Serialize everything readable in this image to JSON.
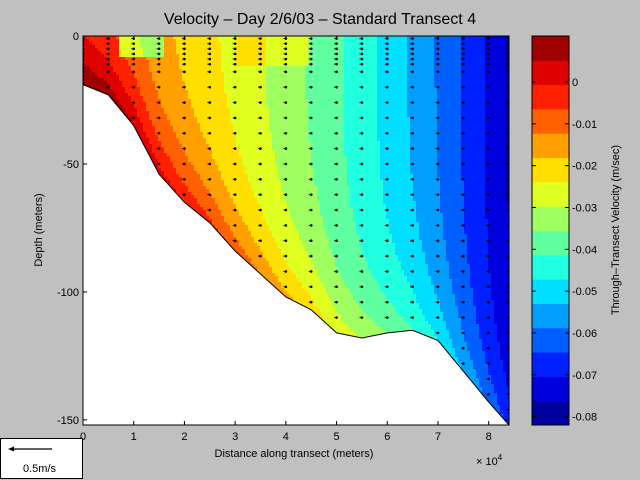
{
  "title": "Velocity – Day 2/6/03 – Standard Transect 4",
  "xlabel": "Distance along transect (meters)",
  "ylabel": "Depth (meters)",
  "x_exponent": "× 10",
  "x_exponent_power": "4",
  "colorbar_label": "Through–Transect Velocity (m/sec)",
  "scale_label": "0.5m/s",
  "chart_data": {
    "type": "heatmap",
    "title": "Velocity – Day 2/6/03 – Standard Transect 4",
    "xlabel": "Distance along transect (meters)",
    "ylabel": "Depth (meters)",
    "xlim": [
      0,
      8.4
    ],
    "ylim": [
      -152,
      0
    ],
    "x_scale": 10000,
    "x_ticks": [
      "0",
      "1",
      "2",
      "3",
      "4",
      "5",
      "6",
      "7",
      "8"
    ],
    "y_ticks": [
      "0",
      "-50",
      "-100",
      "-150"
    ],
    "colorbar": {
      "label": "Through–Transect Velocity (m/sec)",
      "range": [
        -0.082,
        0.011
      ],
      "ticks": [
        "0",
        "-0.01",
        "-0.02",
        "-0.03",
        "-0.04",
        "-0.05",
        "-0.06",
        "-0.07",
        "-0.08"
      ]
    },
    "bottom_profile": [
      [
        0,
        -19
      ],
      [
        0.5,
        -23
      ],
      [
        1,
        -35
      ],
      [
        1.5,
        -54
      ],
      [
        2,
        -65
      ],
      [
        2.5,
        -73
      ],
      [
        3,
        -84
      ],
      [
        3.5,
        -93
      ],
      [
        4,
        -102
      ],
      [
        4.5,
        -107
      ],
      [
        5,
        -116
      ],
      [
        5.5,
        -118
      ],
      [
        6,
        -116
      ],
      [
        6.5,
        -115
      ],
      [
        7,
        -119
      ],
      [
        7.5,
        -131
      ],
      [
        8,
        -143
      ],
      [
        8.4,
        -152
      ]
    ],
    "legend": {
      "reference_vector": "0.5m/s",
      "placement": "bottom-left"
    }
  }
}
